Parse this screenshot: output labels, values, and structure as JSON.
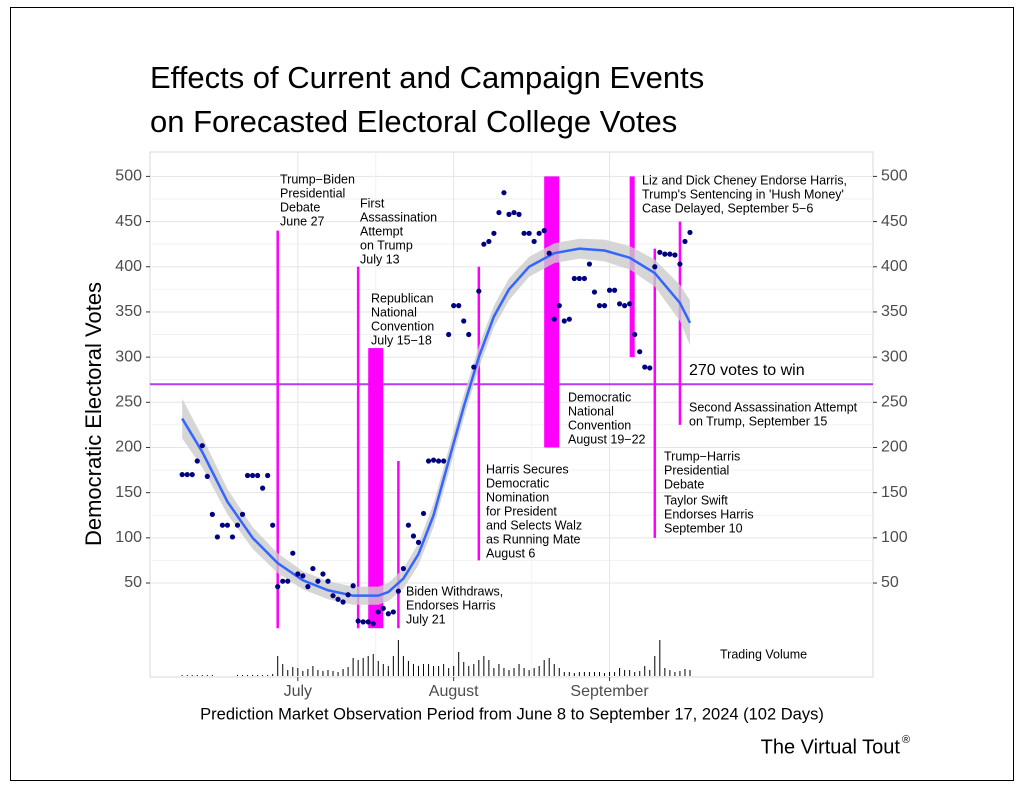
{
  "chart_data": {
    "type": "scatter",
    "title": [
      "Effects of Current and Campaign Events",
      "on Forecasted Electoral College Votes"
    ],
    "y_label": "Democratic Electoral Votes",
    "x_label": "Prediction Market Observation Period from June 8 to September 17, 2024 (102 Days)",
    "brand": "The Virtual Tout",
    "brand_mark": "®",
    "volume_label": "Trading Volume",
    "xlim": [
      -5.4,
      138.4
    ],
    "xticks": [
      {
        "value": 24,
        "label": "July"
      },
      {
        "value": 55,
        "label": "August"
      },
      {
        "value": 86,
        "label": "September"
      }
    ],
    "ylim": [
      -54,
      527
    ],
    "yticks": [
      50,
      100,
      150,
      200,
      250,
      300,
      350,
      400,
      450,
      500
    ],
    "y2lim": [
      -54,
      527
    ],
    "y2ticks": [
      50,
      100,
      150,
      200,
      250,
      300,
      350,
      400,
      450,
      500
    ],
    "grid": true,
    "point_color": "#000080",
    "x": [
      1,
      2,
      3,
      4,
      5,
      6,
      7,
      8,
      9,
      10,
      11,
      12,
      13,
      14,
      15,
      16,
      17,
      18,
      19,
      20,
      21,
      22,
      23,
      24,
      25,
      26,
      27,
      28,
      29,
      30,
      31,
      32,
      33,
      34,
      35,
      36,
      37,
      38,
      39,
      40,
      41,
      42,
      43,
      44,
      45,
      46,
      47,
      48,
      49,
      50,
      51,
      52,
      53,
      54,
      55,
      56,
      57,
      58,
      59,
      60,
      61,
      62,
      63,
      64,
      65,
      66,
      67,
      68,
      69,
      70,
      71,
      72,
      73,
      74,
      75,
      76,
      77,
      78,
      79,
      80,
      81,
      82,
      83,
      84,
      85,
      86,
      87,
      88,
      89,
      90,
      91,
      92,
      93,
      94,
      95,
      96,
      97,
      98,
      99,
      100,
      101,
      102
    ],
    "values": [
      170,
      170,
      170,
      185,
      202,
      168,
      126,
      101,
      114,
      114,
      101,
      114,
      126,
      169,
      169,
      169,
      155,
      169,
      114,
      46,
      52,
      52,
      83,
      60,
      58,
      46,
      66,
      52,
      60,
      52,
      36,
      32,
      29,
      37,
      47,
      8,
      7,
      7,
      5,
      18,
      22,
      16,
      18,
      41,
      66,
      114,
      102,
      95,
      127,
      185,
      186,
      185,
      185,
      325,
      357,
      357,
      340,
      325,
      289,
      373,
      425,
      428,
      437,
      460,
      482,
      458,
      460,
      458,
      437,
      437,
      428,
      437,
      440,
      415,
      342,
      357,
      340,
      342,
      387,
      387,
      387,
      403,
      372,
      357,
      357,
      374,
      374,
      359,
      357,
      359,
      325,
      306,
      289,
      288,
      400,
      416,
      414,
      414,
      413,
      403,
      428,
      438
    ],
    "volume": [
      1,
      1,
      1,
      1,
      1,
      1,
      1,
      0,
      0,
      0,
      0,
      1,
      1,
      1,
      1,
      1,
      1,
      1,
      2,
      20,
      12,
      6,
      9,
      8,
      5,
      7,
      10,
      6,
      5,
      6,
      5,
      4,
      7,
      9,
      18,
      16,
      18,
      20,
      22,
      15,
      12,
      10,
      20,
      36,
      20,
      15,
      12,
      10,
      12,
      12,
      10,
      10,
      12,
      8,
      10,
      24,
      14,
      10,
      12,
      16,
      20,
      16,
      8,
      12,
      8,
      6,
      8,
      12,
      8,
      6,
      8,
      10,
      16,
      18,
      12,
      8,
      4,
      4,
      3,
      4,
      4,
      4,
      4,
      4,
      3,
      4,
      4,
      8,
      6,
      6,
      4,
      5,
      10,
      6,
      20,
      36,
      8,
      6,
      4,
      5,
      7,
      6
    ],
    "volume_color": "#000000",
    "trend": {
      "color": "#3366ff",
      "band_color": "#cccccc",
      "x": [
        1,
        5,
        10,
        15,
        20,
        25,
        30,
        35,
        40,
        42,
        45,
        48,
        51,
        54,
        57,
        60,
        63,
        66,
        70,
        75,
        80,
        85,
        90,
        95,
        100,
        102
      ],
      "values": [
        232,
        195,
        140,
        100,
        72,
        53,
        42,
        36,
        36,
        40,
        55,
        82,
        125,
        185,
        245,
        300,
        345,
        375,
        400,
        415,
        420,
        418,
        410,
        393,
        360,
        338
      ],
      "lower": [
        210,
        178,
        126,
        88,
        61,
        43,
        32,
        26,
        26,
        30,
        44,
        70,
        112,
        172,
        232,
        288,
        333,
        363,
        389,
        404,
        409,
        406,
        397,
        378,
        340,
        313
      ],
      "upper": [
        254,
        212,
        154,
        112,
        83,
        63,
        52,
        46,
        46,
        50,
        66,
        94,
        138,
        198,
        258,
        312,
        357,
        387,
        411,
        426,
        431,
        430,
        423,
        408,
        380,
        363
      ]
    },
    "threshold": {
      "value": 270,
      "label": "270 votes to win",
      "color": "#b23ef0"
    },
    "event_color": "#ff00ff",
    "events": [
      {
        "x": 20,
        "ymin": 0,
        "ymax": 440
      },
      {
        "x": 36,
        "ymin": 0,
        "ymax": 400
      },
      {
        "x0": 38,
        "x1": 41,
        "ymin": 0,
        "ymax": 310
      },
      {
        "x": 44,
        "ymin": 0,
        "ymax": 185
      },
      {
        "x": 60,
        "ymin": 75,
        "ymax": 400
      },
      {
        "x0": 73,
        "x1": 76,
        "ymin": 200,
        "ymax": 500
      },
      {
        "x0": 90,
        "x1": 91,
        "ymin": 300,
        "ymax": 500
      },
      {
        "x": 95,
        "ymin": 100,
        "ymax": 420
      },
      {
        "x": 100,
        "ymin": 225,
        "ymax": 450
      }
    ],
    "annotations": [
      [
        "Trump−Biden",
        "Presidential",
        "Debate",
        "June 27"
      ],
      [
        "First",
        "Assassination",
        "Attempt",
        "on Trump",
        "July 13"
      ],
      [
        "Republican",
        "National",
        "Convention",
        "July 15−18"
      ],
      [
        "Biden Withdraws,",
        "Endorses Harris",
        "July 21"
      ],
      [
        "Harris Secures",
        "Democratic",
        "Nomination",
        "for President",
        "and Selects Walz",
        "as Running Mate",
        "August 6"
      ],
      [
        "Democratic",
        "National",
        "Convention",
        "August 19−22"
      ],
      [
        "Liz and Dick Cheney Endorse Harris,",
        "Trump's Sentencing in 'Hush Money'",
        "Case Delayed, September 5−6"
      ],
      [
        "Trump−Harris",
        "Presidential",
        "Debate"
      ],
      [
        "Taylor Swift",
        "Endorses Harris",
        "September 10"
      ],
      [
        "Second Assassination Attempt",
        "on Trump, September 15"
      ]
    ]
  }
}
